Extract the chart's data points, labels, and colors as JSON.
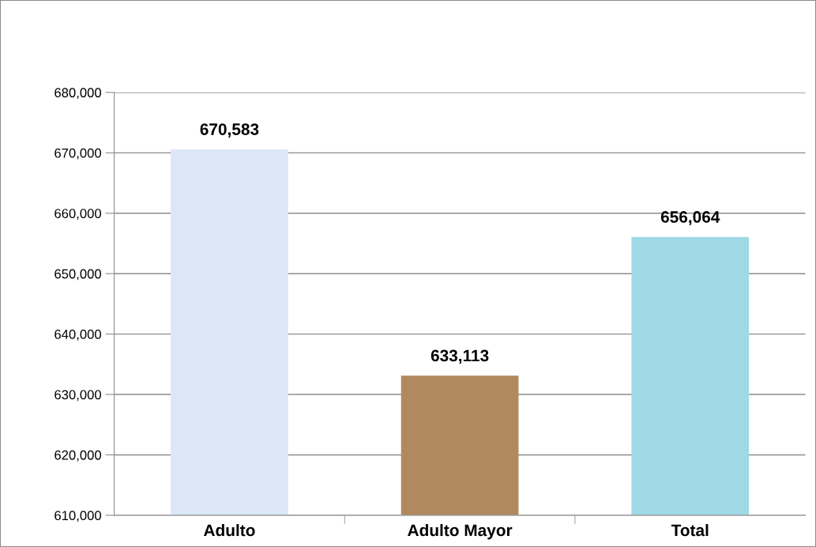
{
  "chart_data": {
    "type": "bar",
    "categories": [
      "Adulto",
      "Adulto Mayor",
      "Total"
    ],
    "values": [
      670583,
      633113,
      656064
    ],
    "colors": [
      "#dce8f6",
      "#b08a5e",
      "#9fd9e5"
    ],
    "value_labels": [
      "670,583",
      "633,113",
      "656,064"
    ],
    "ylim": [
      610000,
      680000
    ],
    "yticks": [
      {
        "value": 610000,
        "label": "610,000"
      },
      {
        "value": 620000,
        "label": "620,000"
      },
      {
        "value": 630000,
        "label": "630,000"
      },
      {
        "value": 640000,
        "label": "640,000"
      },
      {
        "value": 650000,
        "label": "650,000"
      },
      {
        "value": 660000,
        "label": "660,000"
      },
      {
        "value": 670000,
        "label": "670,000"
      },
      {
        "value": 680000,
        "label": "680,000"
      }
    ],
    "grid": "y",
    "legend": false
  }
}
